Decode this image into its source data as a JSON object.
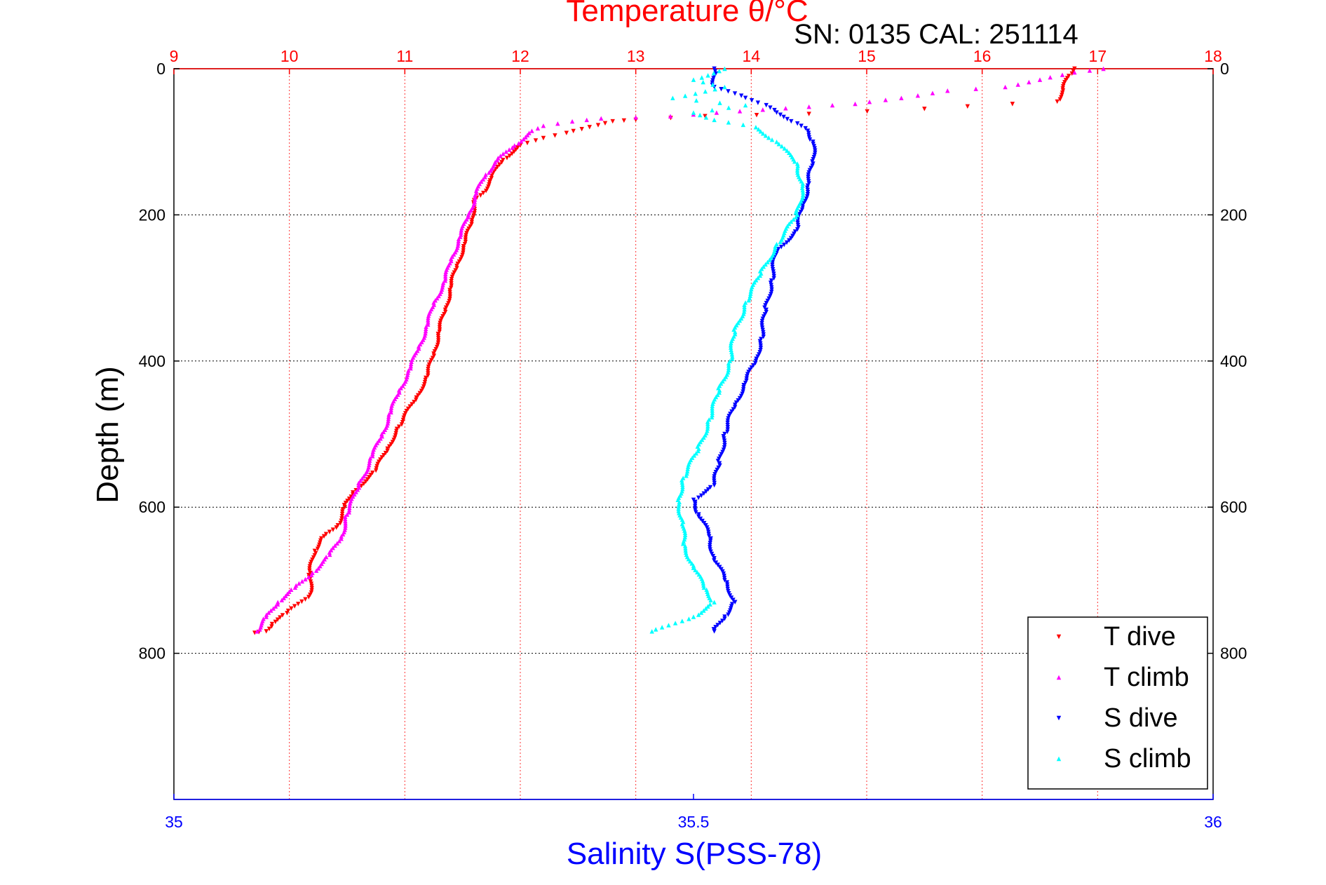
{
  "chart_data": {
    "type": "scatter",
    "title": "Temperature θ/°C",
    "subtitle": "SN: 0135  CAL: 251114",
    "ylabel": "Depth (m)",
    "xlabel_bottom": "Salinity S(PSS-78)",
    "y_axis": {
      "range": [
        0,
        1000
      ],
      "reversed": true,
      "ticks": [
        0,
        200,
        400,
        600,
        800
      ],
      "tick_labels": [
        "0",
        "200",
        "400",
        "600",
        "800"
      ]
    },
    "x_top": {
      "label": "Temperature θ/°C",
      "range": [
        9,
        18
      ],
      "ticks": [
        9,
        10,
        11,
        12,
        13,
        14,
        15,
        16,
        17,
        18
      ],
      "tick_labels": [
        "9",
        "10",
        "11",
        "12",
        "13",
        "14",
        "15",
        "16",
        "17",
        "18"
      ]
    },
    "x_bottom": {
      "label": "Salinity S(PSS-78)",
      "range": [
        35,
        36
      ],
      "ticks": [
        35,
        35.5,
        36
      ],
      "tick_labels": [
        "35",
        "35.5",
        "36"
      ]
    },
    "grid": true,
    "legend_position": "bottom-right",
    "colors": {
      "temperature_axis": "#ff0000",
      "salinity_axis": "#0000ff",
      "grid_temp": "#ff3333",
      "grid_depth": "#000000"
    },
    "series": [
      {
        "name": "T dive",
        "axis": "x_top",
        "marker": "triangle-down",
        "color": "#ff0000",
        "points": [
          [
            16.8,
            0
          ],
          [
            16.75,
            10
          ],
          [
            16.7,
            30
          ],
          [
            16.65,
            45
          ],
          [
            15.5,
            55
          ],
          [
            14.5,
            62
          ],
          [
            13.6,
            65
          ],
          [
            13.0,
            70
          ],
          [
            12.8,
            72
          ],
          [
            12.6,
            80
          ],
          [
            12.4,
            88
          ],
          [
            12.2,
            95
          ],
          [
            12.0,
            105
          ],
          [
            11.85,
            125
          ],
          [
            11.75,
            150
          ],
          [
            11.68,
            170
          ],
          [
            11.6,
            180
          ],
          [
            11.58,
            210
          ],
          [
            11.52,
            240
          ],
          [
            11.45,
            270
          ],
          [
            11.4,
            300
          ],
          [
            11.35,
            330
          ],
          [
            11.3,
            360
          ],
          [
            11.25,
            390
          ],
          [
            11.2,
            420
          ],
          [
            11.1,
            450
          ],
          [
            10.95,
            490
          ],
          [
            10.85,
            520
          ],
          [
            10.75,
            550
          ],
          [
            10.55,
            580
          ],
          [
            10.48,
            600
          ],
          [
            10.42,
            625
          ],
          [
            10.3,
            640
          ],
          [
            10.22,
            660
          ],
          [
            10.18,
            690
          ],
          [
            10.18,
            720
          ],
          [
            9.98,
            745
          ],
          [
            9.85,
            760
          ],
          [
            9.8,
            770
          ],
          [
            9.7,
            772
          ]
        ]
      },
      {
        "name": "T climb",
        "axis": "x_top",
        "marker": "triangle-up",
        "color": "#ff00ff",
        "points": [
          [
            17.05,
            0
          ],
          [
            16.8,
            5
          ],
          [
            16.5,
            15
          ],
          [
            16.2,
            25
          ],
          [
            15.7,
            30
          ],
          [
            15.3,
            40
          ],
          [
            14.9,
            48
          ],
          [
            14.5,
            52
          ],
          [
            14.1,
            56
          ],
          [
            13.7,
            60
          ],
          [
            13.3,
            65
          ],
          [
            12.7,
            68
          ],
          [
            12.45,
            72
          ],
          [
            12.2,
            78
          ],
          [
            12.1,
            85
          ],
          [
            11.95,
            105
          ],
          [
            11.8,
            125
          ],
          [
            11.7,
            145
          ],
          [
            11.62,
            170
          ],
          [
            11.55,
            200
          ],
          [
            11.48,
            230
          ],
          [
            11.4,
            260
          ],
          [
            11.35,
            290
          ],
          [
            11.25,
            320
          ],
          [
            11.2,
            350
          ],
          [
            11.12,
            380
          ],
          [
            11.05,
            410
          ],
          [
            10.95,
            440
          ],
          [
            10.88,
            470
          ],
          [
            10.8,
            500
          ],
          [
            10.72,
            530
          ],
          [
            10.6,
            570
          ],
          [
            10.5,
            610
          ],
          [
            10.45,
            640
          ],
          [
            10.35,
            665
          ],
          [
            10.2,
            690
          ],
          [
            10.05,
            710
          ],
          [
            9.9,
            730
          ],
          [
            9.8,
            750
          ],
          [
            9.72,
            770
          ]
        ]
      },
      {
        "name": "S dive",
        "axis": "x_bottom",
        "marker": "triangle-down",
        "color": "#0000ff",
        "points": [
          [
            35.52,
            0
          ],
          [
            35.52,
            10
          ],
          [
            35.52,
            25
          ],
          [
            35.55,
            40
          ],
          [
            35.57,
            50
          ],
          [
            35.58,
            60
          ],
          [
            35.6,
            75
          ],
          [
            35.61,
            85
          ],
          [
            35.615,
            100
          ],
          [
            35.615,
            130
          ],
          [
            35.61,
            160
          ],
          [
            35.605,
            190
          ],
          [
            35.6,
            220
          ],
          [
            35.58,
            250
          ],
          [
            35.575,
            290
          ],
          [
            35.57,
            330
          ],
          [
            35.565,
            370
          ],
          [
            35.56,
            400
          ],
          [
            35.55,
            430
          ],
          [
            35.54,
            460
          ],
          [
            35.53,
            500
          ],
          [
            35.525,
            540
          ],
          [
            35.52,
            570
          ],
          [
            35.5,
            590
          ],
          [
            35.505,
            610
          ],
          [
            35.515,
            640
          ],
          [
            35.52,
            670
          ],
          [
            35.53,
            700
          ],
          [
            35.54,
            730
          ],
          [
            35.53,
            750
          ],
          [
            35.52,
            770
          ]
        ]
      },
      {
        "name": "S climb",
        "axis": "x_bottom",
        "marker": "triangle-up",
        "color": "#00ffff",
        "points": [
          [
            35.53,
            0
          ],
          [
            35.5,
            15
          ],
          [
            35.53,
            25
          ],
          [
            35.48,
            40
          ],
          [
            35.55,
            50
          ],
          [
            35.5,
            60
          ],
          [
            35.52,
            70
          ],
          [
            35.56,
            80
          ],
          [
            35.58,
            100
          ],
          [
            35.6,
            130
          ],
          [
            35.605,
            160
          ],
          [
            35.6,
            200
          ],
          [
            35.58,
            240
          ],
          [
            35.565,
            280
          ],
          [
            35.55,
            320
          ],
          [
            35.54,
            360
          ],
          [
            35.535,
            400
          ],
          [
            35.525,
            440
          ],
          [
            35.515,
            480
          ],
          [
            35.505,
            520
          ],
          [
            35.49,
            560
          ],
          [
            35.485,
            590
          ],
          [
            35.49,
            620
          ],
          [
            35.49,
            650
          ],
          [
            35.5,
            680
          ],
          [
            35.51,
            710
          ],
          [
            35.52,
            730
          ],
          [
            35.5,
            750
          ],
          [
            35.46,
            770
          ]
        ]
      }
    ]
  }
}
